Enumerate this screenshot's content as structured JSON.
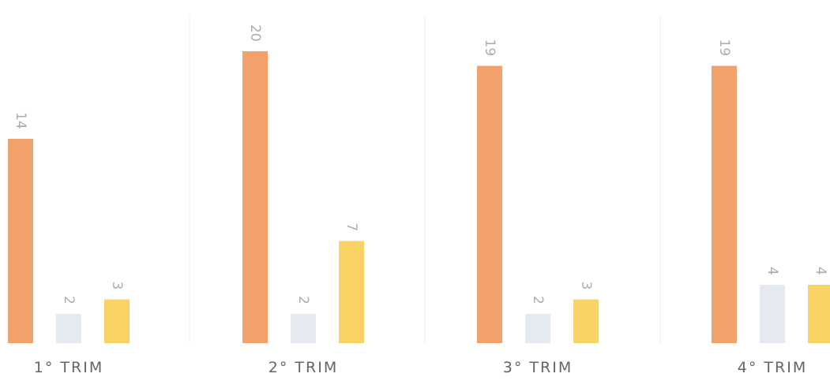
{
  "chart_data": {
    "type": "bar",
    "categories": [
      "1° TRIM",
      "2° TRIM",
      "3° TRIM",
      "4° TRIM"
    ],
    "series": [
      {
        "values": [
          14,
          20,
          19,
          19
        ],
        "color": "#f3a16a"
      },
      {
        "values": [
          2,
          2,
          2,
          4
        ],
        "color": "#e4e9f2"
      },
      {
        "values": [
          3,
          7,
          3,
          4
        ],
        "color": "#f9d366"
      }
    ],
    "ylim": [
      0,
      20
    ],
    "grid": true,
    "title": "",
    "xlabel": "",
    "ylabel": ""
  }
}
